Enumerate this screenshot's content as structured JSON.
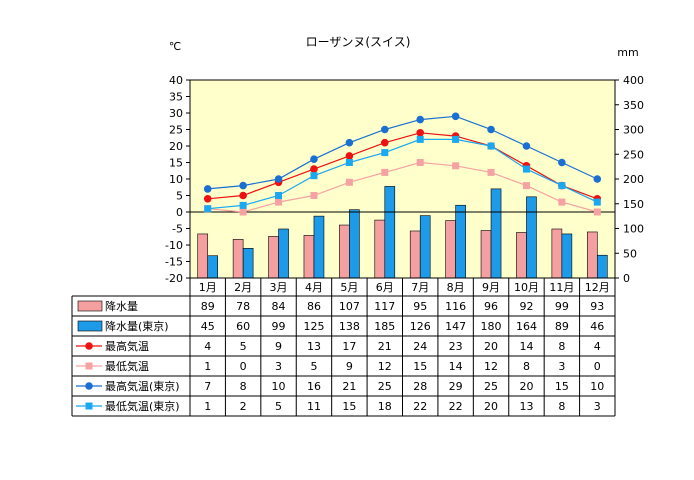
{
  "chart_data": {
    "type": "bar",
    "title": "ローザンヌ(スイス)",
    "y_left_unit": "℃",
    "y_right_unit": "mm",
    "y_left_range": [
      -20,
      40
    ],
    "y_right_range": [
      0,
      400
    ],
    "y_left_ticks": [
      "40",
      "35",
      "30",
      "25",
      "20",
      "15",
      "10",
      "5",
      "0",
      "-5",
      "-10",
      "-15",
      "-20"
    ],
    "y_right_ticks": [
      "400",
      "350",
      "300",
      "250",
      "200",
      "150",
      "100",
      "50",
      "0"
    ],
    "grid": false,
    "categories": [
      "1月",
      "2月",
      "3月",
      "4月",
      "5月",
      "6月",
      "7月",
      "8月",
      "9月",
      "10月",
      "11月",
      "12月"
    ],
    "series": [
      {
        "name": "降水量",
        "kind": "bar",
        "axis": "right",
        "color": "#f4a0a0",
        "values": [
          89,
          78,
          84,
          86,
          107,
          117,
          95,
          116,
          96,
          92,
          99,
          93
        ]
      },
      {
        "name": "降水量(東京)",
        "kind": "bar",
        "axis": "right",
        "color": "#1e9be8",
        "values": [
          45,
          60,
          99,
          125,
          138,
          185,
          126,
          147,
          180,
          164,
          89,
          46
        ]
      },
      {
        "name": "最高気温",
        "kind": "line",
        "axis": "left",
        "color": "#ee1111",
        "marker": "circle",
        "values": [
          4,
          5,
          9,
          13,
          17,
          21,
          24,
          23,
          20,
          14,
          8,
          4
        ]
      },
      {
        "name": "最低気温",
        "kind": "line",
        "axis": "left",
        "color": "#f6a2a2",
        "marker": "square",
        "values": [
          1,
          0,
          3,
          5,
          9,
          12,
          15,
          14,
          12,
          8,
          3,
          0
        ]
      },
      {
        "name": "最高気温(東京)",
        "kind": "line",
        "axis": "left",
        "color": "#1a6fd0",
        "marker": "circle",
        "values": [
          7,
          8,
          10,
          16,
          21,
          25,
          28,
          29,
          25,
          20,
          15,
          10
        ]
      },
      {
        "name": "最低気温(東京)",
        "kind": "line",
        "axis": "left",
        "color": "#1aa8f0",
        "marker": "square",
        "values": [
          1,
          2,
          5,
          11,
          15,
          18,
          22,
          22,
          20,
          13,
          8,
          3
        ]
      }
    ]
  }
}
